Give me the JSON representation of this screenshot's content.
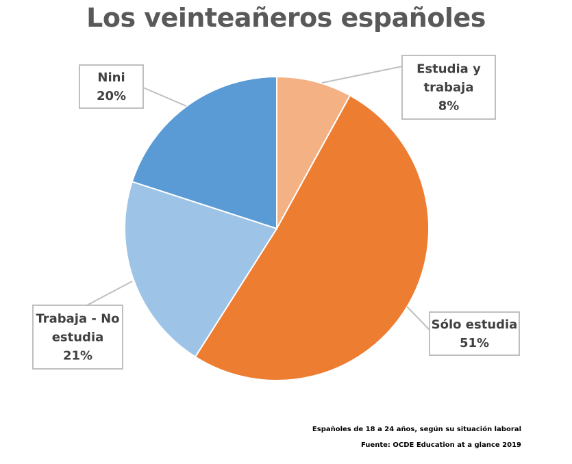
{
  "chart_data": {
    "type": "pie",
    "title": "Los veinteañeros españoles",
    "slices": [
      {
        "label_lines": [
          "Estudia y",
          "trabaja"
        ],
        "value": 8,
        "value_label": "8%",
        "color": "#f4b183"
      },
      {
        "label_lines": [
          "Sólo estudia"
        ],
        "value": 51,
        "value_label": "51%",
        "color": "#ed7d31"
      },
      {
        "label_lines": [
          "Trabaja - No",
          "estudia"
        ],
        "value": 21,
        "value_label": "21%",
        "color": "#9dc3e6"
      },
      {
        "label_lines": [
          "Nini"
        ],
        "value": 20,
        "value_label": "20%",
        "color": "#5b9bd5"
      }
    ],
    "start_angle": "12 o'clock",
    "direction": "clockwise",
    "legend": "none",
    "data_labels": "callout boxes with leader lines"
  },
  "notes": {
    "subtitle": "Españoles de 18 a 24 años, según su situación laboral",
    "source": "Fuente: OCDE Education at a glance 2019"
  }
}
